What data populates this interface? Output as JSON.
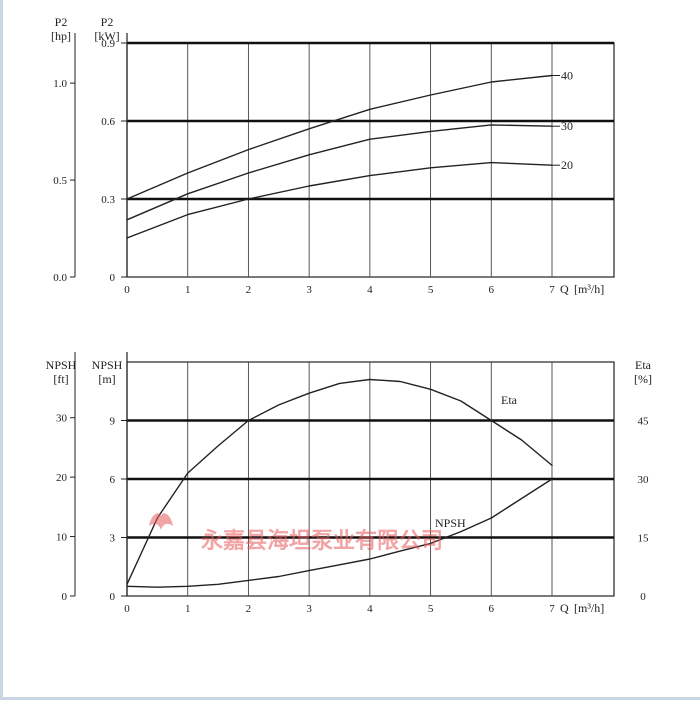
{
  "chart_data": [
    {
      "type": "line",
      "x_label": "Q",
      "x_unit": "[m³/h]",
      "x_ticks": [
        "0",
        "1",
        "2",
        "3",
        "4",
        "5",
        "6",
        "7"
      ],
      "xlim": [
        0,
        7
      ],
      "left_axis": {
        "label": "P2",
        "unit": "[kW]",
        "ylim": [
          0,
          0.9
        ],
        "ticks": [
          {
            "v": 0,
            "t": "0"
          },
          {
            "v": 0.3,
            "t": "0.3"
          },
          {
            "v": 0.6,
            "t": "0.6"
          },
          {
            "v": 0.9,
            "t": "0.9"
          }
        ]
      },
      "outer_axis": {
        "label": "P2",
        "unit": "[hp]",
        "ticks": [
          {
            "v": 0,
            "t": "0.0"
          },
          {
            "v": 0.5,
            "t": "0.5"
          },
          {
            "v": 1.0,
            "t": "1.0"
          }
        ]
      },
      "series": [
        {
          "name": "40",
          "x": [
            0,
            1,
            2,
            3,
            4,
            5,
            6,
            7
          ],
          "y": [
            0.3,
            0.4,
            0.49,
            0.57,
            0.645,
            0.7,
            0.75,
            0.775
          ]
        },
        {
          "name": "30",
          "x": [
            0,
            1,
            2,
            3,
            4,
            5,
            6,
            7
          ],
          "y": [
            0.22,
            0.32,
            0.4,
            0.47,
            0.53,
            0.56,
            0.585,
            0.58
          ]
        },
        {
          "name": "20",
          "x": [
            0,
            1,
            2,
            3,
            4,
            5,
            6,
            7
          ],
          "y": [
            0.15,
            0.24,
            0.3,
            0.35,
            0.39,
            0.42,
            0.44,
            0.43
          ]
        }
      ],
      "grid": true
    },
    {
      "type": "line",
      "x_label": "Q",
      "x_unit": "[m³/h]",
      "x_ticks": [
        "0",
        "1",
        "2",
        "3",
        "4",
        "5",
        "6",
        "7"
      ],
      "xlim": [
        0,
        7
      ],
      "left_axis": {
        "label": "NPSH",
        "unit": "[m]",
        "ylim": [
          0,
          12
        ],
        "ticks": [
          {
            "v": 0,
            "t": "0"
          },
          {
            "v": 3,
            "t": "3"
          },
          {
            "v": 6,
            "t": "6"
          },
          {
            "v": 9,
            "t": "9"
          }
        ]
      },
      "outer_axis": {
        "label": "NPSH",
        "unit": "[ft]",
        "ticks": [
          {
            "v": 0,
            "t": "0"
          },
          {
            "v": 10,
            "t": "10"
          },
          {
            "v": 20,
            "t": "20"
          },
          {
            "v": 30,
            "t": "30"
          }
        ]
      },
      "right_axis": {
        "label": "Eta",
        "unit": "[%]",
        "ylim": [
          0,
          60
        ],
        "ticks": [
          {
            "v": 0,
            "t": "0"
          },
          {
            "v": 15,
            "t": "15"
          },
          {
            "v": 30,
            "t": "30"
          },
          {
            "v": 45,
            "t": "45"
          }
        ]
      },
      "series": [
        {
          "name": "Eta",
          "axis": "right",
          "x": [
            0,
            0.5,
            1,
            1.5,
            2,
            2.5,
            3,
            3.5,
            4,
            4.5,
            5,
            5.5,
            6,
            6.5,
            7
          ],
          "y": [
            3,
            20,
            31.5,
            38.5,
            45,
            49,
            52,
            54.5,
            55.5,
            55,
            53,
            50,
            45,
            40,
            33.5
          ]
        },
        {
          "name": "NPSH",
          "axis": "left",
          "x": [
            0,
            0.5,
            1,
            1.5,
            2,
            2.5,
            3,
            3.5,
            4,
            4.5,
            5,
            5.5,
            6,
            6.5,
            7
          ],
          "y": [
            0.5,
            0.45,
            0.5,
            0.6,
            0.8,
            1.0,
            1.3,
            1.6,
            1.9,
            2.3,
            2.7,
            3.3,
            4.0,
            5.0,
            6.0
          ]
        }
      ],
      "grid": true
    }
  ],
  "watermark": {
    "company": "永嘉县海坦泵业有限公司",
    "color": "#e85a5a"
  }
}
